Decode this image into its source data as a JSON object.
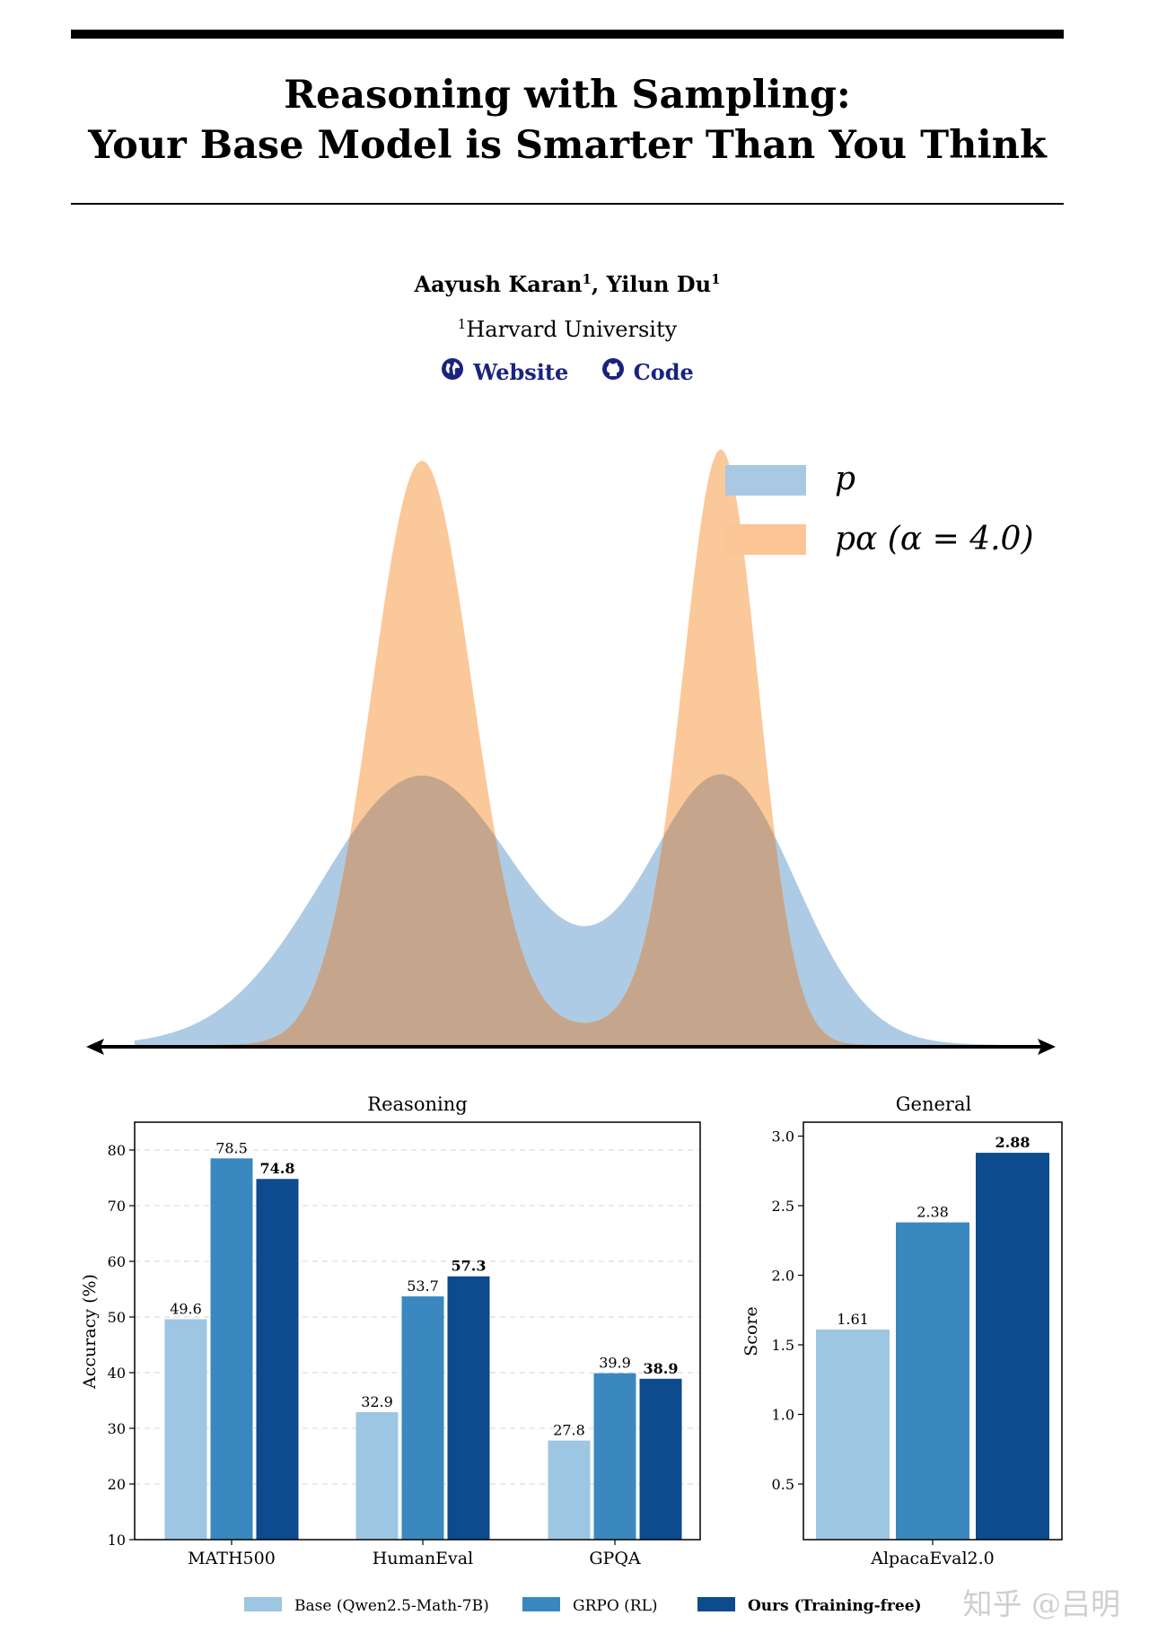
{
  "paper": {
    "title_line1": "Reasoning with Sampling:",
    "title_line2": "Your Base Model is Smarter Than You Think",
    "author1": "Aayush Karan",
    "author1_sup": "1",
    "author_sep": ", ",
    "author2": "Yilun Du",
    "author2_sup": "1",
    "affil_sup": "1",
    "affiliation": "Harvard University",
    "links": {
      "website": "Website",
      "code": "Code"
    },
    "link_color": "#1a237e",
    "icons": {
      "website": "globe-icon",
      "code": "github-icon"
    }
  },
  "distribution_figure": {
    "legend": [
      {
        "label": "p",
        "color": "#a9c8e4"
      },
      {
        "label": "pα (α = 4.0)",
        "color": "#fbc595"
      }
    ]
  },
  "chart_data": [
    {
      "type": "bar",
      "title": "Reasoning",
      "ylabel": "Accuracy (%)",
      "ylim": [
        10,
        85
      ],
      "yticks": [
        10,
        20,
        30,
        40,
        50,
        60,
        70,
        80
      ],
      "categories": [
        "MATH500",
        "HumanEval",
        "GPQA"
      ],
      "series": [
        {
          "name": "Base (Qwen2.5-Math-7B)",
          "values": [
            49.6,
            32.9,
            27.8
          ],
          "color": "#9dc6e3"
        },
        {
          "name": "GRPO (RL)",
          "values": [
            78.5,
            53.7,
            39.9
          ],
          "color": "#3b88c0"
        },
        {
          "name": "Ours (Training-free)",
          "values": [
            74.8,
            57.3,
            38.9
          ],
          "color": "#0d4a8e"
        }
      ],
      "grid": true
    },
    {
      "type": "bar",
      "title": "General",
      "ylabel": "Score",
      "ylim": [
        0.1,
        3.1
      ],
      "yticks": [
        0.5,
        1.0,
        1.5,
        2.0,
        2.5,
        3.0
      ],
      "categories": [
        "AlpacaEval2.0"
      ],
      "series": [
        {
          "name": "Base (Qwen2.5-Math-7B)",
          "values": [
            1.61
          ],
          "color": "#9dc6e3"
        },
        {
          "name": "GRPO (RL)",
          "values": [
            2.38
          ],
          "color": "#3b88c0"
        },
        {
          "name": "Ours (Training-free)",
          "values": [
            2.88
          ],
          "color": "#0d4a8e"
        }
      ],
      "grid": false
    }
  ],
  "legend_bottom": [
    {
      "label": "Base (Qwen2.5-Math-7B)",
      "color": "#9dc6e3"
    },
    {
      "label": "GRPO (RL)",
      "color": "#3b88c0"
    },
    {
      "label": "Ours (Training-free)",
      "color": "#0d4a8e"
    }
  ],
  "watermark": "知乎 @吕明"
}
